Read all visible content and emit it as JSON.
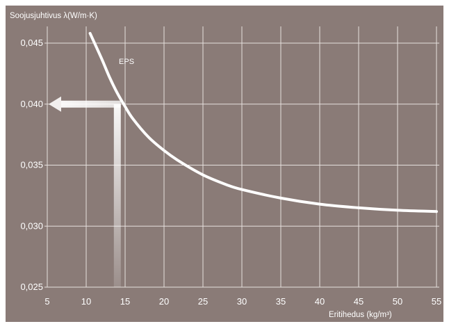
{
  "chart_data": {
    "type": "line",
    "title": "",
    "ylabel": "Soojusjuhtivus λ(W/m·K)",
    "xlabel": "Eritihedus (kg/m³)",
    "xlim": [
      5,
      55
    ],
    "ylim": [
      0.025,
      0.045
    ],
    "grid": true,
    "x_ticks": [
      "5",
      "10",
      "15",
      "20",
      "25",
      "30",
      "35",
      "40",
      "45",
      "50",
      "55"
    ],
    "y_ticks": [
      "0,025",
      "0,030",
      "0,035",
      "0,040",
      "0,045"
    ],
    "series": [
      {
        "name": "EPS",
        "x": [
          10.5,
          12,
          13,
          14,
          15,
          16,
          18,
          20,
          22,
          25,
          28,
          30,
          35,
          40,
          45,
          50,
          55
        ],
        "y": [
          0.0458,
          0.0437,
          0.0422,
          0.0409,
          0.0398,
          0.0388,
          0.0373,
          0.0362,
          0.0353,
          0.0342,
          0.0334,
          0.033,
          0.0323,
          0.0318,
          0.0315,
          0.0313,
          0.0312
        ]
      }
    ],
    "annotation": {
      "arrow_from_x": 14,
      "arrow_to_y": 0.04
    },
    "colors": {
      "background": "#8a7b77",
      "grid": "#e6e0de",
      "curve": "#ffffff",
      "text": "#ffffff"
    }
  }
}
